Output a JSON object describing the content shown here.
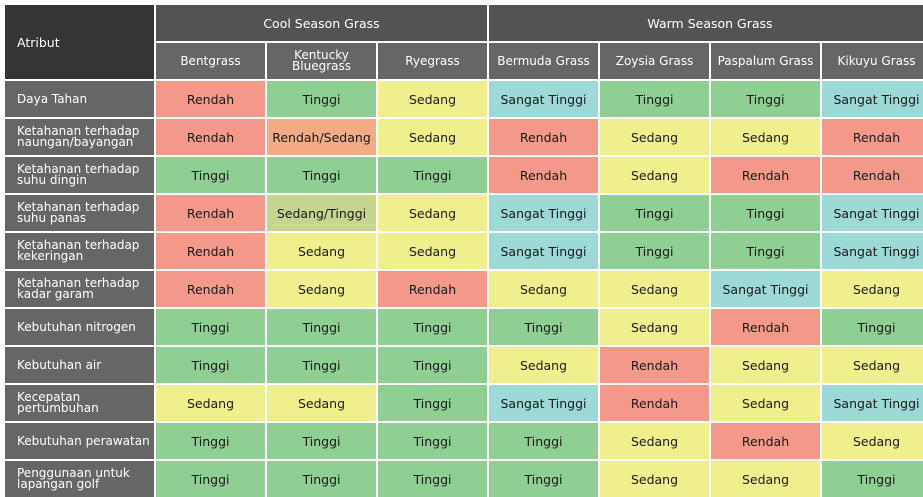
{
  "header": {
    "attribute_label": "Atribut",
    "groups": [
      {
        "label": "Cool Season Grass",
        "span": 3
      },
      {
        "label": "Warm Season Grass",
        "span": 4
      }
    ],
    "columns": [
      "Bentgrass",
      "Kentucky Bluegrass",
      "Ryegrass",
      "Bermuda Grass",
      "Zoysia Grass",
      "Paspalum Grass",
      "Kikuyu Grass"
    ]
  },
  "colors": {
    "Rendah": "#f4998a",
    "Rendah/Sedang": "#f1ac87",
    "Sedang": "#f0ef8e",
    "Sedang/Tinggi": "#c6d58f",
    "Tinggi": "#8fcf93",
    "Sangat Tinggi": "#9dd9d6",
    "header_dark": "#353535",
    "header": "#535353",
    "label_bg": "#666666"
  },
  "rows": [
    {
      "attribute": "Daya Tahan",
      "values": [
        "Rendah",
        "Tinggi",
        "Sedang",
        "Sangat Tinggi",
        "Tinggi",
        "Tinggi",
        "Sangat Tinggi"
      ]
    },
    {
      "attribute": "Ketahanan terhadap naungan/bayangan",
      "values": [
        "Rendah",
        "Rendah/Sedang",
        "Sedang",
        "Rendah",
        "Sedang",
        "Sedang",
        "Rendah"
      ]
    },
    {
      "attribute": "Ketahanan terhadap suhu dingin",
      "values": [
        "Tinggi",
        "Tinggi",
        "Tinggi",
        "Rendah",
        "Sedang",
        "Rendah",
        "Rendah"
      ]
    },
    {
      "attribute": "Ketahanan terhadap suhu panas",
      "values": [
        "Rendah",
        "Sedang/Tinggi",
        "Sedang",
        "Sangat Tinggi",
        "Tinggi",
        "Tinggi",
        "Sangat Tinggi"
      ]
    },
    {
      "attribute": "Ketahanan terhadap kekeringan",
      "values": [
        "Rendah",
        "Sedang",
        "Sedang",
        "Sangat Tinggi",
        "Tinggi",
        "Tinggi",
        "Sangat Tinggi"
      ]
    },
    {
      "attribute": "Ketahanan terhadap kadar garam",
      "values": [
        "Rendah",
        "Sedang",
        "Rendah",
        "Sedang",
        "Sedang",
        "Sangat Tinggi",
        "Sedang"
      ]
    },
    {
      "attribute": "Kebutuhan nitrogen",
      "values": [
        "Tinggi",
        "Tinggi",
        "Tinggi",
        "Tinggi",
        "Sedang",
        "Rendah",
        "Tinggi"
      ]
    },
    {
      "attribute": "Kebutuhan air",
      "values": [
        "Tinggi",
        "Tinggi",
        "Tinggi",
        "Sedang",
        "Rendah",
        "Sedang",
        "Sedang"
      ]
    },
    {
      "attribute": "Kecepatan pertumbuhan",
      "values": [
        "Sedang",
        "Sedang",
        "Tinggi",
        "Sangat Tinggi",
        "Rendah",
        "Sedang",
        "Sangat Tinggi"
      ]
    },
    {
      "attribute": "Kebutuhan perawatan",
      "values": [
        "Tinggi",
        "Tinggi",
        "Tinggi",
        "Tinggi",
        "Sedang",
        "Rendah",
        "Sedang"
      ]
    },
    {
      "attribute": "Penggunaan untuk lapangan golf",
      "values": [
        "Tinggi",
        "Tinggi",
        "Tinggi",
        "Tinggi",
        "Sedang",
        "Sedang",
        "Tinggi"
      ]
    }
  ]
}
